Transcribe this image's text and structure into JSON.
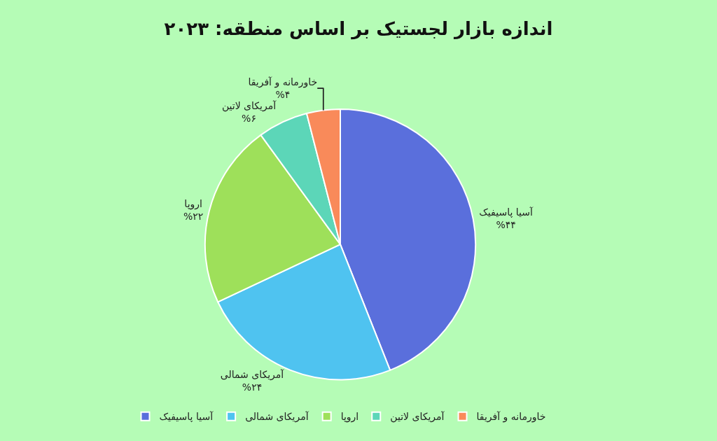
{
  "chart_data": {
    "type": "pie",
    "title": "اندازه بازار لجستیک بر اساس منطقه: ۲۰۲۳",
    "categories": [
      "آسیا پاسیفیک",
      "آمریکای شمالی",
      "اروپا",
      "آمریکای لاتین",
      "خاورمانه و آفریقا"
    ],
    "values": [
      44,
      24,
      22,
      6,
      4
    ],
    "value_labels": [
      "%۴۴",
      "%۲۴",
      "%۲۲",
      "%۶",
      "%۴"
    ],
    "colors": [
      "#5a6fdc",
      "#4fc3f0",
      "#9ee05a",
      "#5cd6b8",
      "#f98a5a"
    ],
    "legend": "bottom"
  }
}
